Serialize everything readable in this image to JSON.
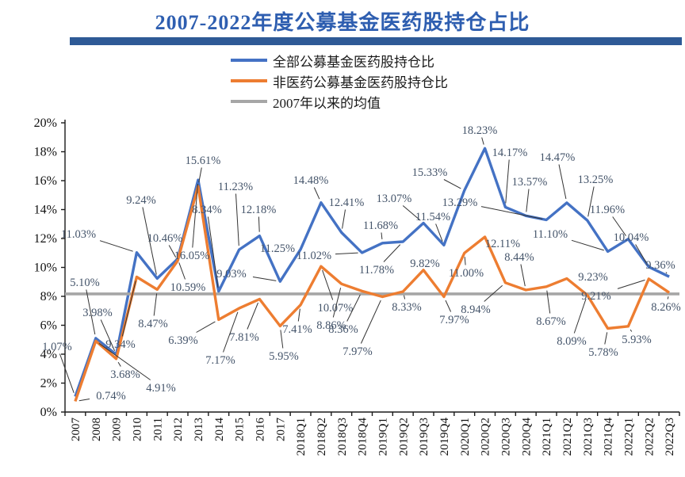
{
  "chart_data": {
    "type": "line",
    "title": "2007-2022年度公募基金医药股持仓占比",
    "categories": [
      "2007",
      "2008",
      "2009",
      "2010",
      "2011",
      "2012",
      "2013",
      "2014",
      "2015",
      "2016",
      "2017",
      "2018Q1",
      "2018Q2",
      "2018Q3",
      "2018Q4",
      "2019Q1",
      "2019Q2",
      "2019Q3",
      "2019Q4",
      "2020Q1",
      "2020Q2",
      "2020Q3",
      "2020Q4",
      "2021Q1",
      "2021Q2",
      "2021Q3",
      "2021Q4",
      "2022Q1",
      "2022Q2",
      "2022Q3"
    ],
    "series": [
      {
        "name": "全部公募基金医药股持仓比",
        "color": "#4472C4",
        "values": [
          1.07,
          5.1,
          3.98,
          11.03,
          9.24,
          10.59,
          16.05,
          8.34,
          11.23,
          12.18,
          9.03,
          11.25,
          14.48,
          12.41,
          11.02,
          11.68,
          11.78,
          13.07,
          11.54,
          15.33,
          18.23,
          14.17,
          13.57,
          13.29,
          14.47,
          13.25,
          11.1,
          11.96,
          10.04,
          9.36
        ]
      },
      {
        "name": "非医药公募基金医药股持仓比",
        "color": "#ED7D31",
        "values": [
          0.74,
          4.91,
          3.68,
          9.34,
          8.47,
          10.46,
          15.61,
          6.39,
          7.17,
          7.81,
          5.95,
          7.41,
          10.07,
          8.86,
          8.36,
          7.97,
          8.33,
          9.82,
          7.97,
          11.0,
          12.11,
          8.94,
          8.44,
          8.67,
          9.23,
          8.09,
          5.78,
          5.93,
          9.21,
          8.26
        ]
      },
      {
        "name": "2007年以来的均值",
        "color": "#A6A6A6",
        "type": "mean-line",
        "value": 8.17
      }
    ],
    "value_suffix": "%",
    "ylim": [
      0,
      20
    ],
    "ytick_step": 2,
    "yticks": [
      "0%",
      "2%",
      "4%",
      "6%",
      "8%",
      "10%",
      "12%",
      "14%",
      "16%",
      "18%",
      "20%"
    ],
    "grid": false,
    "legend_position": "top",
    "data_labels": true,
    "label_color": "#44546A",
    "axis_color": "#1a1a1a"
  }
}
